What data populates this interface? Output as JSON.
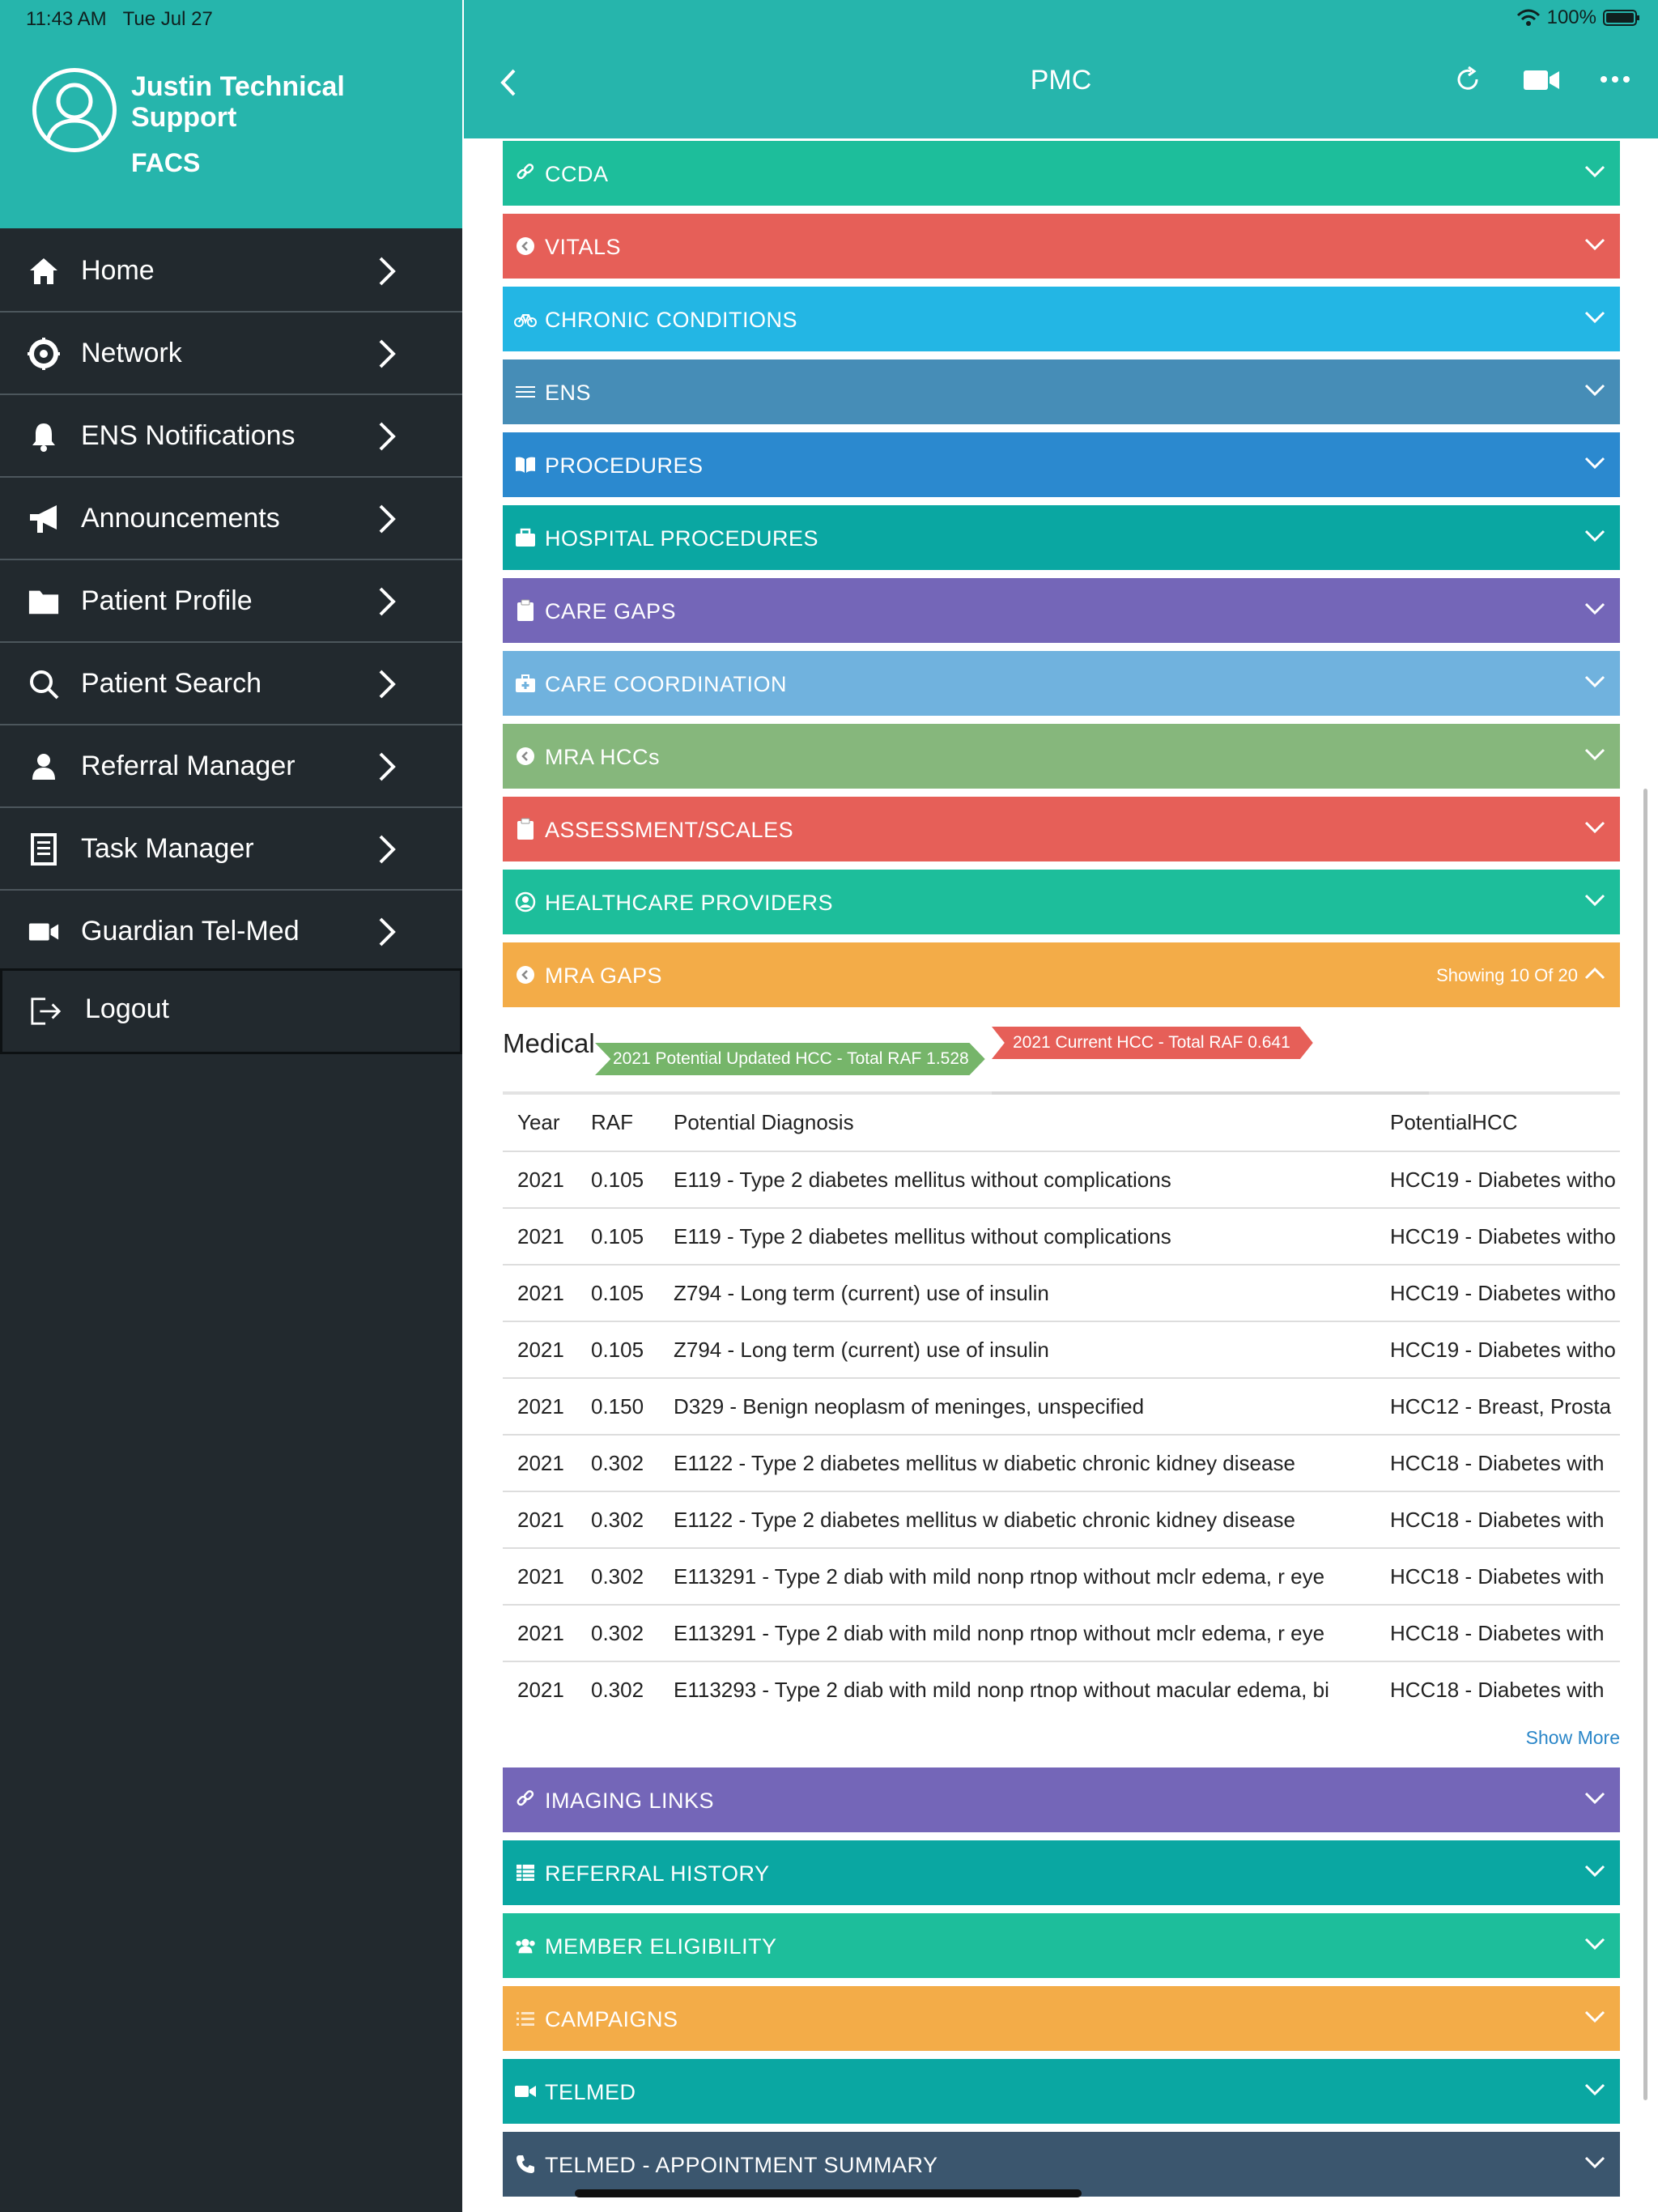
{
  "status_bar": {
    "time": "11:43 AM",
    "date": "Tue Jul 27",
    "battery": "100%"
  },
  "sidebar": {
    "user_name": "Justin Technical Support",
    "user_role": "FACS",
    "menu": [
      {
        "label": "Home",
        "icon": "home-icon"
      },
      {
        "label": "Network",
        "icon": "network-icon"
      },
      {
        "label": "ENS Notifications",
        "icon": "bell-icon"
      },
      {
        "label": "Announcements",
        "icon": "megaphone-icon"
      },
      {
        "label": "Patient Profile",
        "icon": "folder-icon"
      },
      {
        "label": "Patient Search",
        "icon": "search-icon"
      },
      {
        "label": "Referral Manager",
        "icon": "person-icon"
      },
      {
        "label": "Task Manager",
        "icon": "list-icon"
      },
      {
        "label": "Guardian Tel-Med",
        "icon": "video-icon"
      }
    ],
    "logout_label": "Logout"
  },
  "header": {
    "title": "PMC"
  },
  "sections": [
    {
      "label": "CCDA",
      "color": "#1dbe9b",
      "icon": "link-icon"
    },
    {
      "label": "VITALS",
      "color": "#e65f58",
      "icon": "circle-arrow-icon"
    },
    {
      "label": "CHRONIC CONDITIONS",
      "color": "#23b6e4",
      "icon": "bicycle-icon"
    },
    {
      "label": "ENS",
      "color": "#468db7",
      "icon": "menu-lines-icon"
    },
    {
      "label": "PROCEDURES",
      "color": "#2b89cf",
      "icon": "book-icon"
    },
    {
      "label": "HOSPITAL PROCEDURES",
      "color": "#0aa7a2",
      "icon": "briefcase-icon"
    },
    {
      "label": "CARE GAPS",
      "color": "#7466b8",
      "icon": "clipboard-icon"
    },
    {
      "label": "CARE COORDINATION",
      "color": "#70b2de",
      "icon": "medical-kit-icon"
    },
    {
      "label": "MRA HCCs",
      "color": "#86b77c",
      "icon": "circle-arrow-icon"
    },
    {
      "label": "ASSESSMENT/SCALES",
      "color": "#e65f58",
      "icon": "clipboard-icon"
    },
    {
      "label": "HEALTHCARE PROVIDERS",
      "color": "#1dbe9b",
      "icon": "user-circle-icon"
    },
    {
      "label": "MRA GAPS",
      "color": "#f3ac48",
      "icon": "circle-arrow-icon",
      "extra": "Showing 10 Of 20",
      "expanded": true
    },
    {
      "label": "IMAGING LINKS",
      "color": "#7466b8",
      "icon": "link-icon"
    },
    {
      "label": "REFERRAL HISTORY",
      "color": "#0aa7a2",
      "icon": "table-icon"
    },
    {
      "label": "MEMBER ELIGIBILITY",
      "color": "#1dbe9b",
      "icon": "users-icon"
    },
    {
      "label": "CAMPAIGNS",
      "color": "#f3ac48",
      "icon": "list-icon"
    },
    {
      "label": "TELMED",
      "color": "#0aa7a2",
      "icon": "video-icon"
    },
    {
      "label": "TELMED - APPOINTMENT SUMMARY",
      "color": "#3b566e",
      "icon": "phone-icon"
    }
  ],
  "mra_gaps": {
    "medical_label": "Medical",
    "potential_tag": "2021 Potential Updated HCC - Total RAF 1.528",
    "current_tag": "2021 Current HCC - Total RAF 0.641",
    "columns": [
      "Year",
      "RAF",
      "Potential Diagnosis",
      "PotentialHCC"
    ],
    "rows": [
      [
        "2021",
        "0.105",
        "E119 - Type 2 diabetes mellitus without complications",
        "HCC19 - Diabetes witho"
      ],
      [
        "2021",
        "0.105",
        "E119 - Type 2 diabetes mellitus without complications",
        "HCC19 - Diabetes witho"
      ],
      [
        "2021",
        "0.105",
        "Z794 - Long term (current) use of insulin",
        "HCC19 - Diabetes witho"
      ],
      [
        "2021",
        "0.105",
        "Z794 - Long term (current) use of insulin",
        "HCC19 - Diabetes witho"
      ],
      [
        "2021",
        "0.150",
        "D329 - Benign neoplasm of meninges, unspecified",
        "HCC12 - Breast, Prosta"
      ],
      [
        "2021",
        "0.302",
        "E1122 - Type 2 diabetes mellitus w diabetic chronic kidney disease",
        "HCC18 - Diabetes with"
      ],
      [
        "2021",
        "0.302",
        "E1122 - Type 2 diabetes mellitus w diabetic chronic kidney disease",
        "HCC18 - Diabetes with"
      ],
      [
        "2021",
        "0.302",
        "E113291 - Type 2 diab with mild nonp rtnop without mclr edema, r eye",
        "HCC18 - Diabetes with"
      ],
      [
        "2021",
        "0.302",
        "E113291 - Type 2 diab with mild nonp rtnop without mclr edema, r eye",
        "HCC18 - Diabetes with"
      ],
      [
        "2021",
        "0.302",
        "E113293 - Type 2 diab with mild nonp rtnop without macular edema, bi",
        "HCC18 - Diabetes with"
      ]
    ],
    "show_more": "Show More"
  }
}
